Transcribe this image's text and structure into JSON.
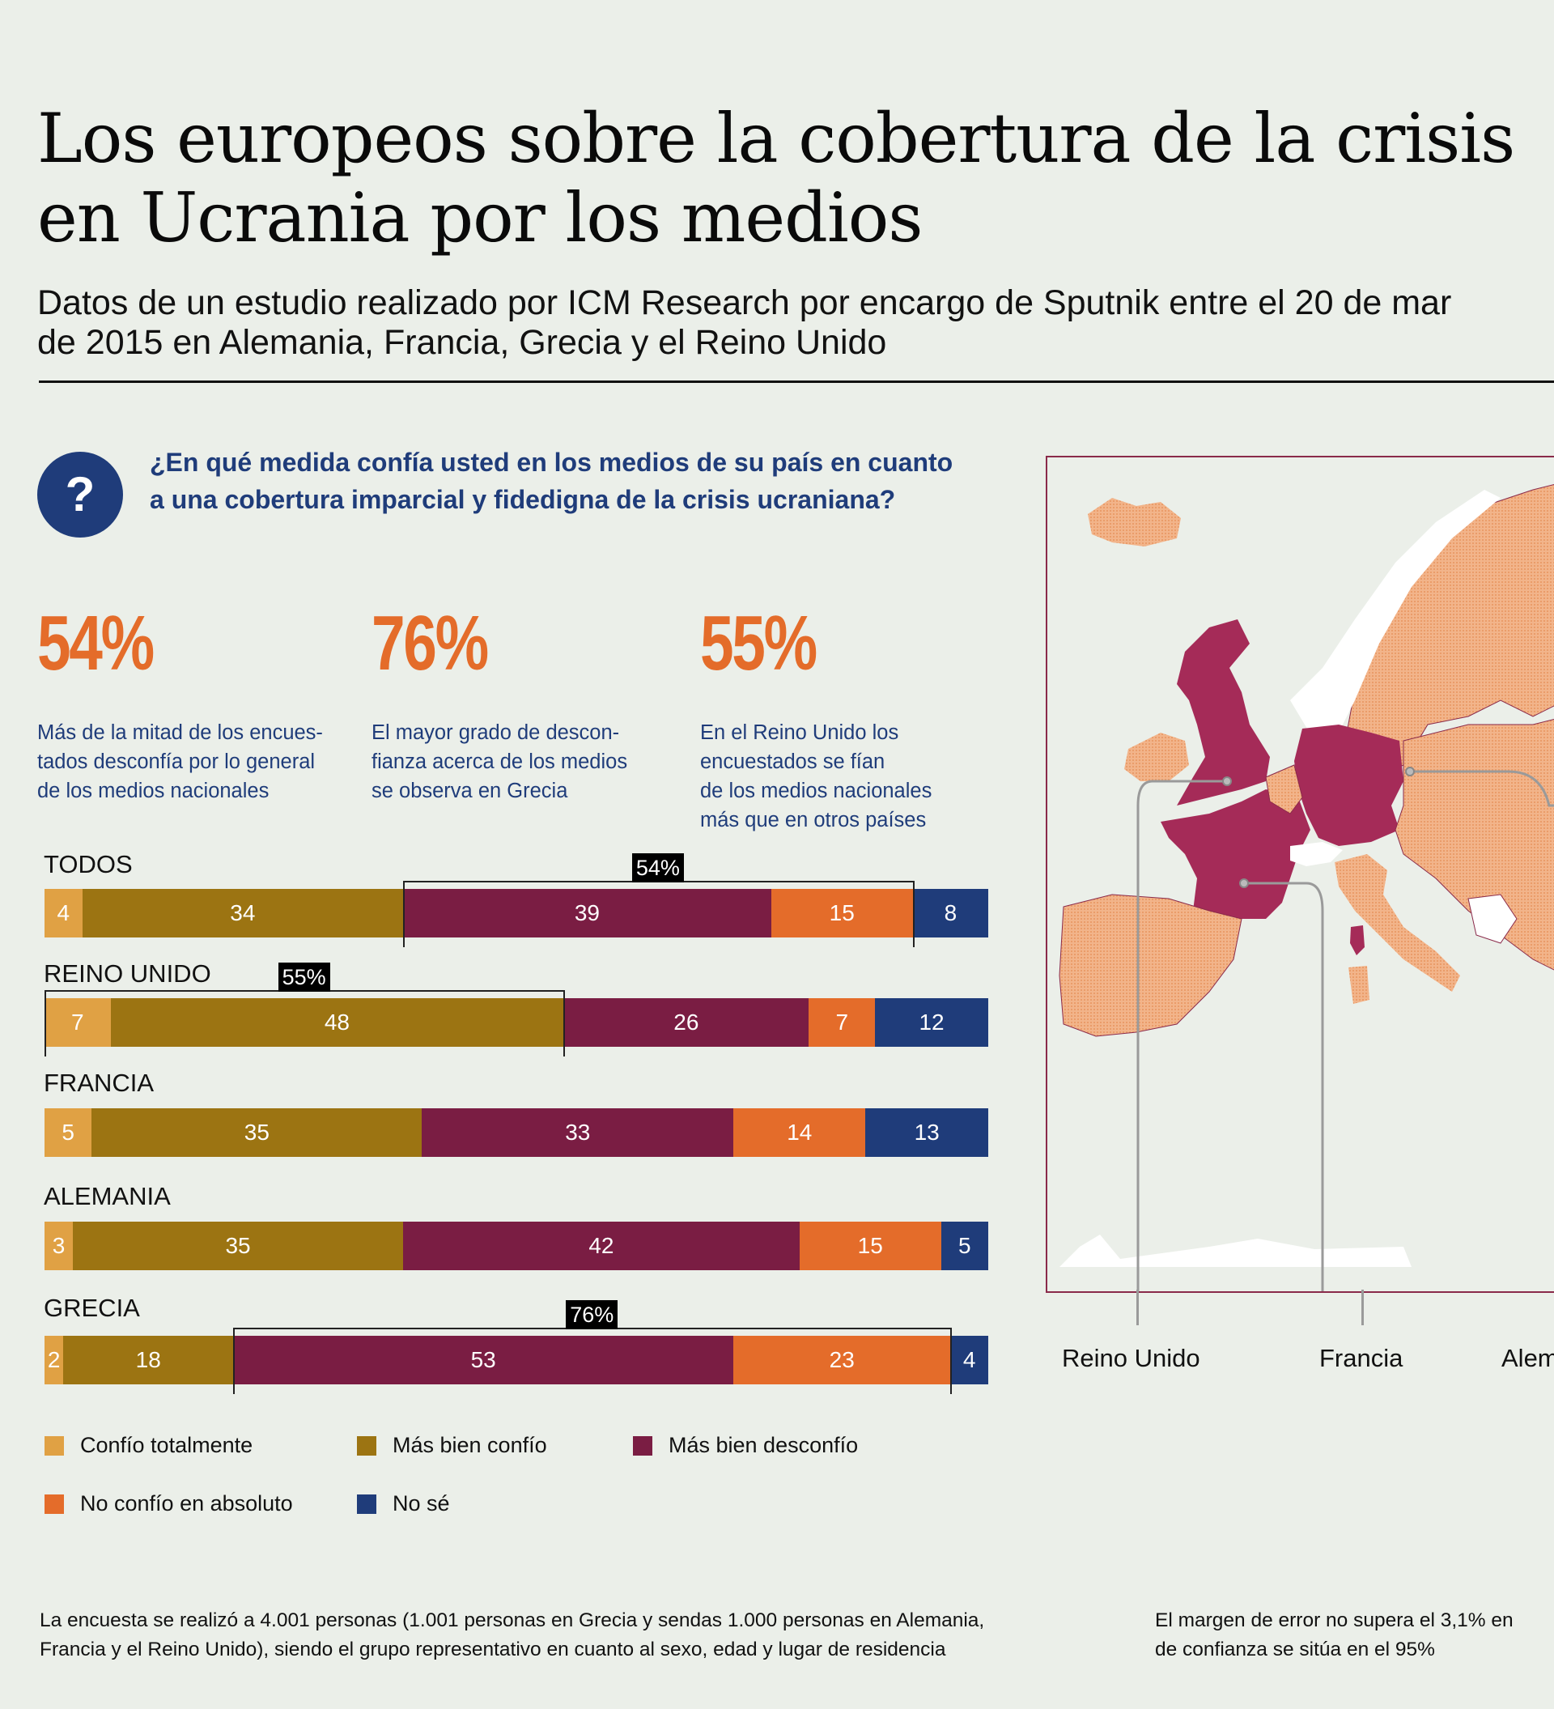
{
  "header": {
    "title_line1": "Los europeos sobre la cobertura de la crisis",
    "title_line2": "en Ucrania por los medios",
    "subtitle_line1": "Datos de un estudio realizado por ICM Research por encargo de Sputnik entre el 20 de mar",
    "subtitle_line2": "de 2015 en Alemania, Francia, Grecia y el Reino Unido"
  },
  "question": {
    "icon": "question-mark-icon",
    "icon_glyph": "?",
    "text": "¿En qué medida confía usted en los medios de su país en cuanto a una cobertura imparcial y fidedigna de la crisis ucraniana?"
  },
  "stats": [
    {
      "value": "54%",
      "description": "Más de la mitad de los encues-\ntados desconfía por lo general\nde los medios nacionales"
    },
    {
      "value": "76%",
      "description": "El mayor grado de descon-\nfianza acerca de los medios\nse observa en Grecia"
    },
    {
      "value": "55%",
      "description": "En el Reino Unido los\nencuestados se fían\nde los medios nacionales\nmás que en otros países"
    }
  ],
  "colors": {
    "confio_totalmente": "#e0a144",
    "mas_bien_confio": "#9c7412",
    "mas_bien_desconfio": "#7a1d43",
    "no_confio": "#e46c2a",
    "no_se": "#1f3c7a",
    "accent_blue": "#1f3c7a",
    "accent_orange": "#e46c2a",
    "map_highlight": "#a52b58",
    "map_other": "#f0a878"
  },
  "chart_data": {
    "type": "bar",
    "orientation": "horizontal-stacked-100",
    "title": "",
    "xlabel": "",
    "ylabel": "",
    "categories": [
      "TODOS",
      "REINO UNIDO",
      "FRANCIA",
      "ALEMANIA",
      "GRECIA"
    ],
    "series": [
      {
        "name": "Confío totalmente",
        "values": [
          4,
          7,
          5,
          3,
          2
        ]
      },
      {
        "name": "Más bien confío",
        "values": [
          34,
          48,
          35,
          35,
          18
        ]
      },
      {
        "name": "Más bien desconfío",
        "values": [
          39,
          26,
          33,
          42,
          53
        ]
      },
      {
        "name": "No confío en absoluto",
        "values": [
          15,
          7,
          14,
          15,
          23
        ]
      },
      {
        "name": "No sé",
        "values": [
          8,
          12,
          13,
          5,
          4
        ]
      }
    ],
    "annotations": [
      {
        "category": "TODOS",
        "label": "54%",
        "from_series": 2,
        "to_series": 3
      },
      {
        "category": "REINO UNIDO",
        "label": "55%",
        "from_series": 0,
        "to_series": 1
      },
      {
        "category": "GRECIA",
        "label": "76%",
        "from_series": 2,
        "to_series": 3
      }
    ],
    "legend": {
      "placement": "bottom",
      "entries": [
        "Confío totalmente",
        "Más bien confío",
        "Más bien desconfío",
        "No confío en absoluto",
        "No sé"
      ]
    },
    "grid": false
  },
  "legend": [
    {
      "label": "Confío totalmente"
    },
    {
      "label": "Más bien confío"
    },
    {
      "label": "Más bien desconfío"
    },
    {
      "label": "No confío en absoluto"
    },
    {
      "label": "No sé"
    }
  ],
  "map": {
    "labels": [
      "Reino Unido",
      "Francia",
      "Alem"
    ],
    "highlighted_countries": [
      "Reino Unido",
      "Francia",
      "Alemania"
    ]
  },
  "footer": {
    "left": "La encuesta se realizó a 4.001 personas (1.001 personas en Grecia y sendas 1.000 personas en Alemania,\nFrancia y el Reino Unido), siendo el grupo representativo en cuanto al sexo, edad y lugar de residencia",
    "right": "El margen de error no supera el 3,1% en\nde confianza se sitúa en el 95%"
  }
}
